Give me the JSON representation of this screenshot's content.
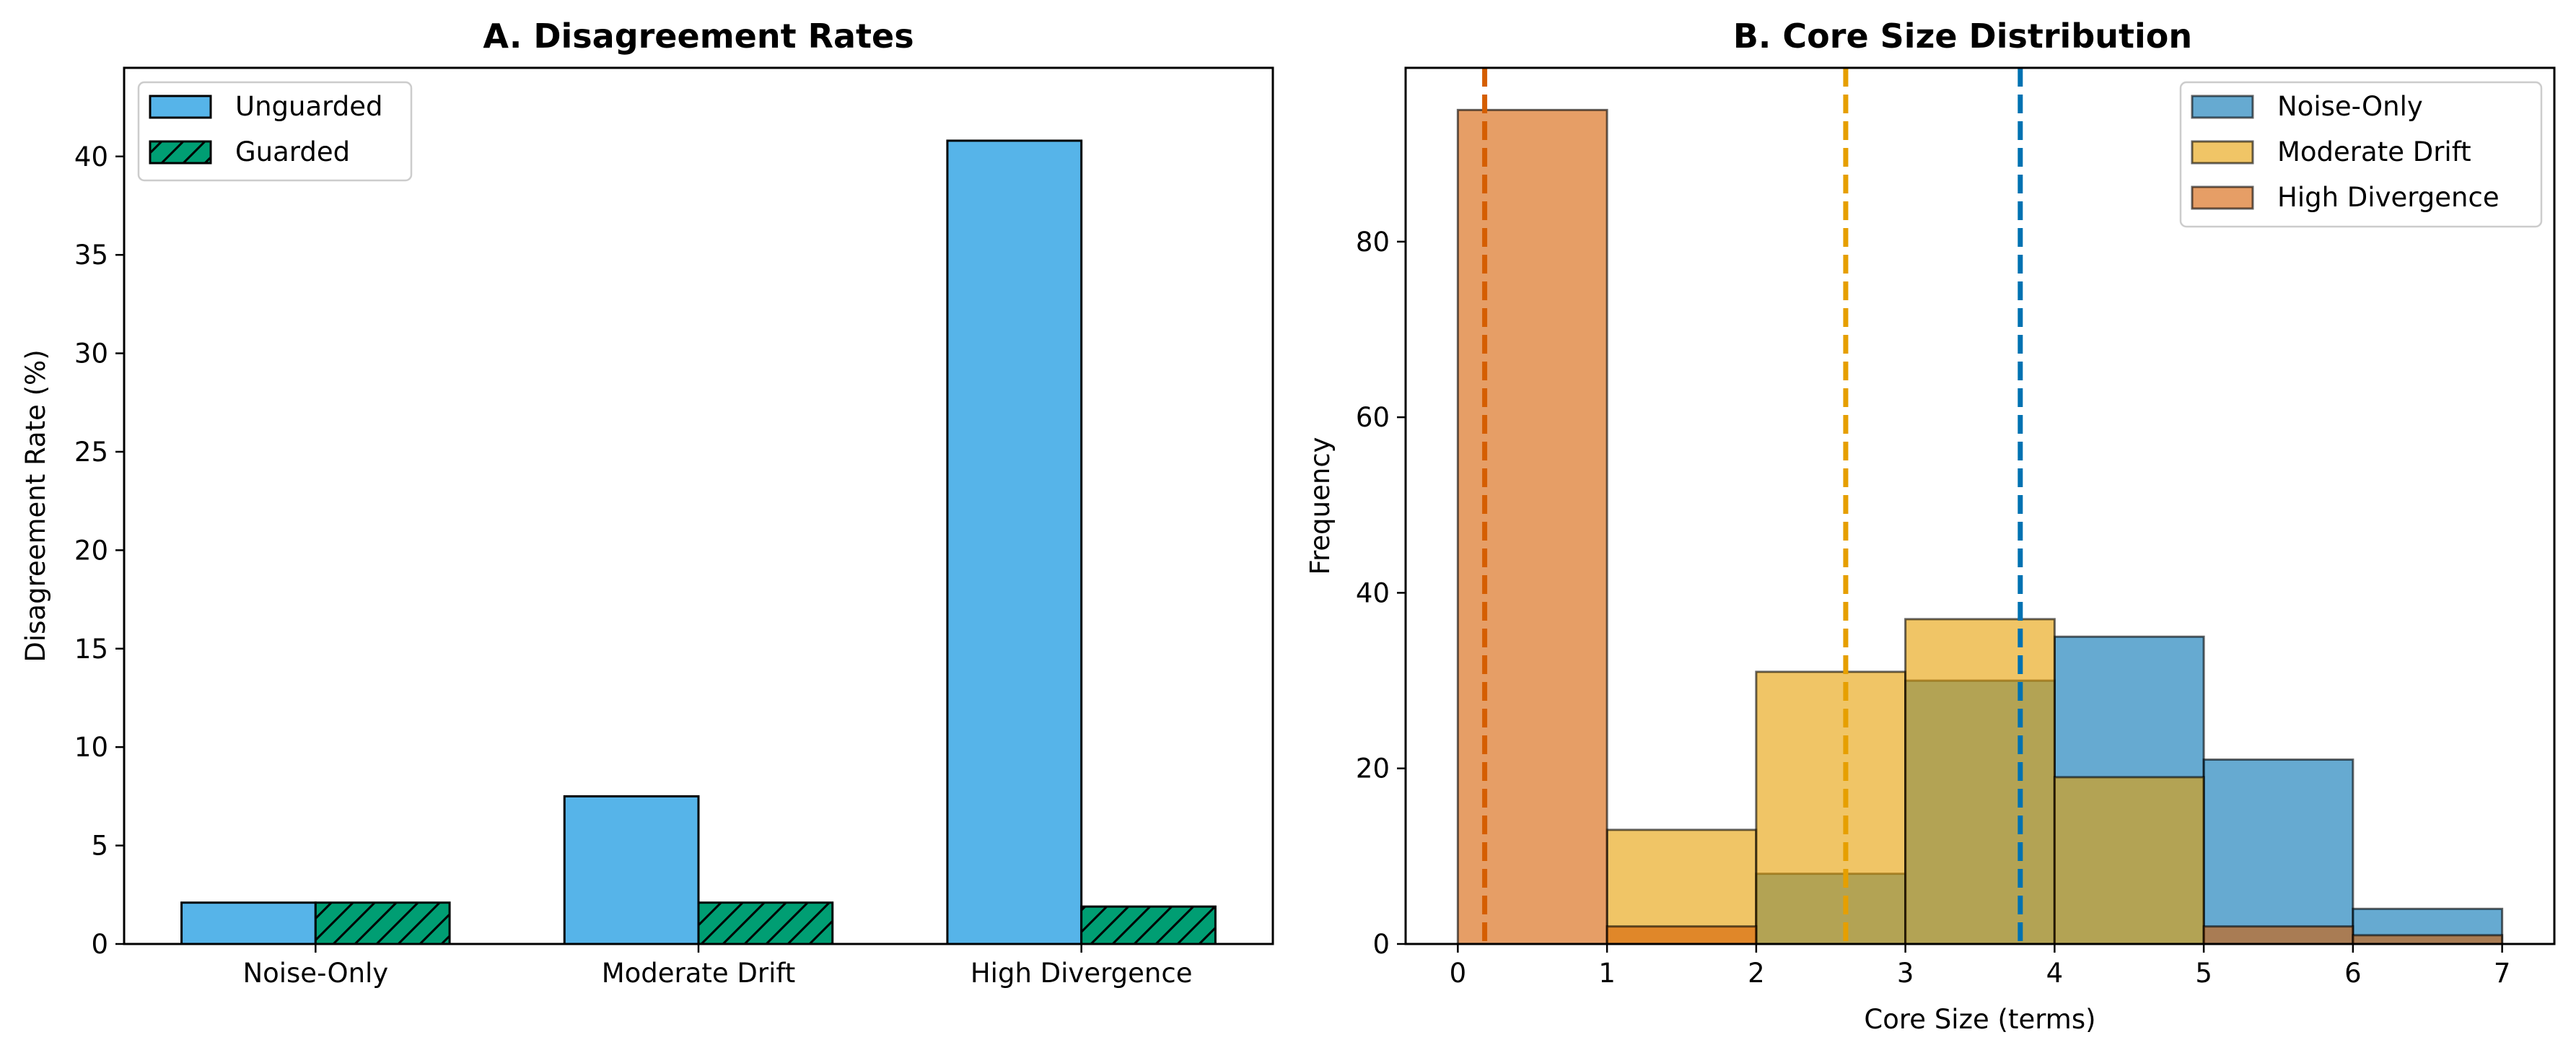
{
  "chart_data": [
    {
      "type": "bar",
      "title": "A. Disagreement Rates",
      "xlabel": "",
      "ylabel": "Disagreement Rate (%)",
      "categories": [
        "Noise-Only",
        "Moderate Drift",
        "High Divergence"
      ],
      "ylim": [
        0,
        44.5
      ],
      "yticks": [
        "0",
        "5",
        "10",
        "15",
        "20",
        "25",
        "30",
        "35",
        "40"
      ],
      "series": [
        {
          "name": "Unguarded",
          "values": [
            2.1,
            7.5,
            40.8
          ],
          "color": "#56B4E9",
          "hatch": false
        },
        {
          "name": "Guarded",
          "values": [
            2.1,
            2.1,
            1.9
          ],
          "color": "#009E73",
          "hatch": true
        }
      ],
      "legend_position": "upper-left",
      "grid": false
    },
    {
      "type": "histogram",
      "title": "B. Core Size Distribution",
      "xlabel": "Core Size (terms)",
      "ylabel": "Frequency",
      "bins": [
        0,
        1,
        2,
        3,
        4,
        5,
        6,
        7
      ],
      "xticks": [
        "0",
        "1",
        "2",
        "3",
        "4",
        "5",
        "6",
        "7"
      ],
      "yticks": [
        "0",
        "20",
        "40",
        "60",
        "80"
      ],
      "xlim": [
        -0.35,
        7.35
      ],
      "ylim": [
        0,
        99.8
      ],
      "series": [
        {
          "name": "Noise-Only",
          "counts": [
            0,
            0,
            8,
            30,
            35,
            21,
            4
          ],
          "color": "#0072B2",
          "mean": 3.77
        },
        {
          "name": "Moderate Drift",
          "counts": [
            0,
            13,
            31,
            37,
            19,
            0,
            0
          ],
          "color": "#E69F00",
          "mean": 2.6
        },
        {
          "name": "High Divergence",
          "counts": [
            95,
            2,
            0,
            0,
            0,
            2,
            1
          ],
          "color": "#D55E00",
          "mean": 0.18
        }
      ],
      "legend_position": "upper-right",
      "grid": false
    }
  ]
}
